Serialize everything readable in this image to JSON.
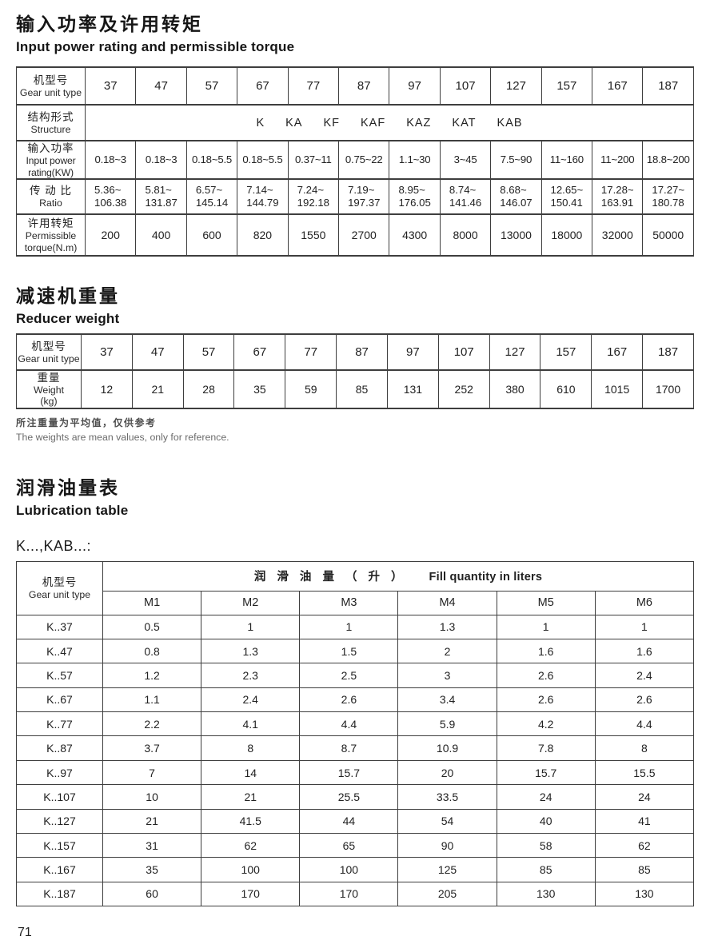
{
  "colors": {
    "text": "#1c1c1c",
    "border": "#3e3e3e",
    "note_gray": "#6b6b6b"
  },
  "section_power": {
    "title_zh": "输入功率及许用转矩",
    "title_en": "Input power rating and permissible torque",
    "labels": {
      "type_zh": "机型号",
      "type_en": "Gear unit type",
      "structure_zh": "结构形式",
      "structure_en": "Structure",
      "power_zh": "输入功率",
      "power_en": "Input power\nrating(KW)",
      "ratio_zh": "传 动 比",
      "ratio_en": "Ratio",
      "torque_zh": "许用转矩",
      "torque_en": "Permissible\ntorque(N.m)"
    },
    "gear_types": [
      "37",
      "47",
      "57",
      "67",
      "77",
      "87",
      "97",
      "107",
      "127",
      "157",
      "167",
      "187"
    ],
    "structure_values": [
      "K",
      "KA",
      "KF",
      "KAF",
      "KAZ",
      "KAT",
      "KAB"
    ],
    "input_power_kw": [
      "0.18~3",
      "0.18~3",
      "0.18~5.5",
      "0.18~5.5",
      "0.37~11",
      "0.75~22",
      "1.1~30",
      "3~45",
      "7.5~90",
      "11~160",
      "11~200",
      "18.8~200"
    ],
    "ratio": [
      "5.36~\n106.38",
      "5.81~\n131.87",
      "6.57~\n145.14",
      "7.14~\n144.79",
      "7.24~\n192.18",
      "7.19~\n197.37",
      "8.95~\n176.05",
      "8.74~\n141.46",
      "8.68~\n146.07",
      "12.65~\n150.41",
      "17.28~\n163.91",
      "17.27~\n180.78"
    ],
    "permissible_torque_nm": [
      "200",
      "400",
      "600",
      "820",
      "1550",
      "2700",
      "4300",
      "8000",
      "13000",
      "18000",
      "32000",
      "50000"
    ]
  },
  "section_weight": {
    "title_zh": "减速机重量",
    "title_en": "Reducer weight",
    "labels": {
      "type_zh": "机型号",
      "type_en": "Gear unit type",
      "weight_zh": "重量",
      "weight_en": "Weight\n(kg)"
    },
    "gear_types": [
      "37",
      "47",
      "57",
      "67",
      "77",
      "87",
      "97",
      "107",
      "127",
      "157",
      "167",
      "187"
    ],
    "weights_kg": [
      "12",
      "21",
      "28",
      "35",
      "59",
      "85",
      "131",
      "252",
      "380",
      "610",
      "1015",
      "1700"
    ],
    "note_zh": "所注重量为平均值，仅供参考",
    "note_en": "The weights are mean values, only for reference."
  },
  "section_lubrication": {
    "title_zh": "润滑油量表",
    "title_en": "Lubrication table",
    "subtitle": "K...,KAB...:",
    "table": {
      "label_zh": "机型号",
      "label_en": "Gear unit type",
      "header_zh": "润 滑 油 量 （ 升 ）",
      "header_en": "Fill quantity in liters",
      "columns": [
        "M1",
        "M2",
        "M3",
        "M4",
        "M5",
        "M6"
      ],
      "rows": [
        {
          "model": "K..37",
          "values": [
            "0.5",
            "1",
            "1",
            "1.3",
            "1",
            "1"
          ]
        },
        {
          "model": "K..47",
          "values": [
            "0.8",
            "1.3",
            "1.5",
            "2",
            "1.6",
            "1.6"
          ]
        },
        {
          "model": "K..57",
          "values": [
            "1.2",
            "2.3",
            "2.5",
            "3",
            "2.6",
            "2.4"
          ]
        },
        {
          "model": "K..67",
          "values": [
            "1.1",
            "2.4",
            "2.6",
            "3.4",
            "2.6",
            "2.6"
          ]
        },
        {
          "model": "K..77",
          "values": [
            "2.2",
            "4.1",
            "4.4",
            "5.9",
            "4.2",
            "4.4"
          ]
        },
        {
          "model": "K..87",
          "values": [
            "3.7",
            "8",
            "8.7",
            "10.9",
            "7.8",
            "8"
          ]
        },
        {
          "model": "K..97",
          "values": [
            "7",
            "14",
            "15.7",
            "20",
            "15.7",
            "15.5"
          ]
        },
        {
          "model": "K..107",
          "values": [
            "10",
            "21",
            "25.5",
            "33.5",
            "24",
            "24"
          ]
        },
        {
          "model": "K..127",
          "values": [
            "21",
            "41.5",
            "44",
            "54",
            "40",
            "41"
          ]
        },
        {
          "model": "K..157",
          "values": [
            "31",
            "62",
            "65",
            "90",
            "58",
            "62"
          ]
        },
        {
          "model": "K..167",
          "values": [
            "35",
            "100",
            "100",
            "125",
            "85",
            "85"
          ]
        },
        {
          "model": "K..187",
          "values": [
            "60",
            "170",
            "170",
            "205",
            "130",
            "130"
          ]
        }
      ]
    }
  },
  "footer": {
    "page_number": "71"
  }
}
